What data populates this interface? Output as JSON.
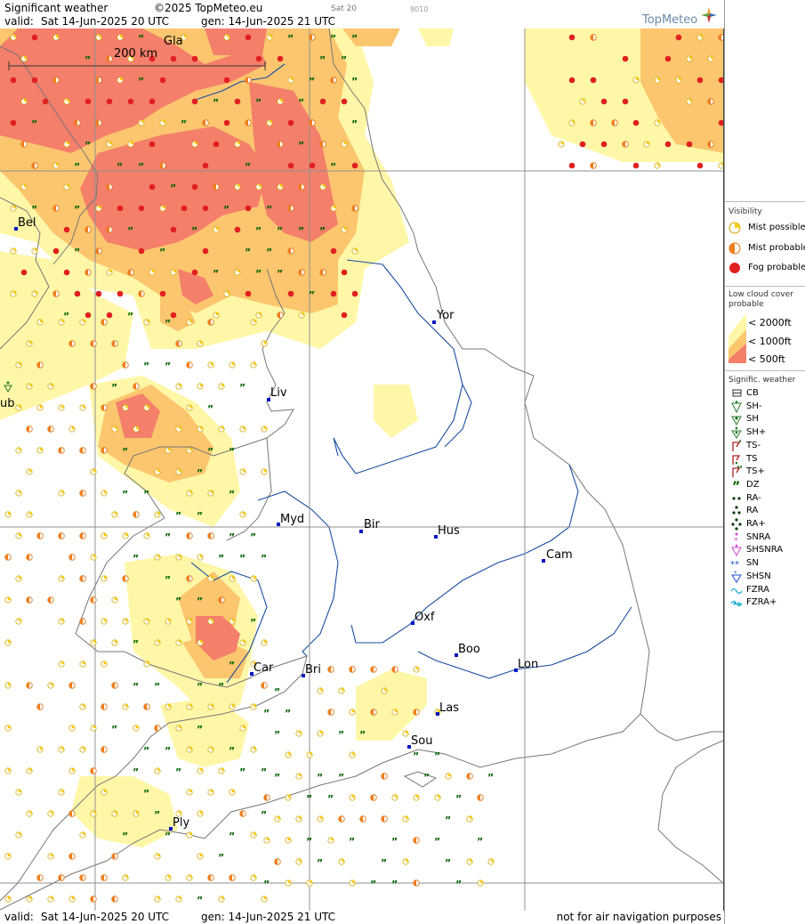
{
  "header": {
    "title": "Significant weather",
    "copyright": "©2025 TopMeteo.eu",
    "run_label": "Sat 20",
    "run_code": "9010",
    "valid_label": "valid:",
    "valid_value": "Sat  14-Jun-2025  20 UTC",
    "generated": "gen: 14-Jun-2025 21 UTC",
    "logo_text": "TopMeteo"
  },
  "footer": {
    "valid_label": "valid:",
    "valid_value": "Sat  14-Jun-2025  20 UTC",
    "generated": "gen: 14-Jun-2025 21 UTC",
    "disclaimer": "not for air navigation purposes"
  },
  "map": {
    "scale_label": "200 km",
    "cities": [
      {
        "label": "Gla"
      },
      {
        "label": "Bel"
      },
      {
        "label": "Yor"
      },
      {
        "label": "Liv"
      },
      {
        "label": "ub"
      },
      {
        "label": "Myd"
      },
      {
        "label": "Bir"
      },
      {
        "label": "Hus"
      },
      {
        "label": "Cam"
      },
      {
        "label": "Oxf"
      },
      {
        "label": "Boo"
      },
      {
        "label": "Lon"
      },
      {
        "label": "Car"
      },
      {
        "label": "Bri"
      },
      {
        "label": "Las"
      },
      {
        "label": "Sou"
      },
      {
        "label": "Ply"
      }
    ],
    "colors": {
      "low_2000": "#fff7a8",
      "low_1000": "#fbc66e",
      "low_500": "#f47f6a",
      "mist_possible": "#f5cc1a",
      "mist_probable": "#f08020",
      "fog": "#e02020",
      "drizzle": "#006000",
      "coast": "#777777",
      "river": "#1a4ca0",
      "grid": "#909090"
    }
  },
  "legend": {
    "visibility": {
      "title": "Visibility",
      "items": [
        {
          "label": "Mist possible",
          "icon": "mist-possible-icon"
        },
        {
          "label": "Mist probable",
          "icon": "mist-probable-icon"
        },
        {
          "label": "Fog probable",
          "icon": "fog-icon"
        }
      ]
    },
    "lowcloud": {
      "title_1": "Low cloud cover",
      "title_2": "probable",
      "items": [
        {
          "label": "< 2000ft"
        },
        {
          "label": "< 1000ft"
        },
        {
          "label": "<   500ft"
        }
      ]
    },
    "weather": {
      "title": "Signific. weather",
      "items": [
        {
          "label": "CB",
          "icon": "cb-icon"
        },
        {
          "label": "SH-",
          "icon": "shower-light-icon"
        },
        {
          "label": "SH",
          "icon": "shower-icon"
        },
        {
          "label": "SH+",
          "icon": "shower-heavy-icon"
        },
        {
          "label": "TS-",
          "icon": "thunder-light-icon"
        },
        {
          "label": "TS",
          "icon": "thunder-icon"
        },
        {
          "label": "TS+",
          "icon": "thunder-heavy-icon"
        },
        {
          "label": "DZ",
          "icon": "drizzle-icon"
        },
        {
          "label": "RA-",
          "icon": "rain-light-icon"
        },
        {
          "label": "RA",
          "icon": "rain-icon"
        },
        {
          "label": "RA+",
          "icon": "rain-heavy-icon"
        },
        {
          "label": "SNRA",
          "icon": "sleet-icon"
        },
        {
          "label": "SHSNRA",
          "icon": "sleet-shower-icon"
        },
        {
          "label": "SN",
          "icon": "snow-icon"
        },
        {
          "label": "SHSN",
          "icon": "snow-shower-icon"
        },
        {
          "label": "FZRA",
          "icon": "freezing-rain-icon"
        },
        {
          "label": "FZRA+",
          "icon": "freezing-rain-heavy-icon"
        }
      ]
    }
  }
}
